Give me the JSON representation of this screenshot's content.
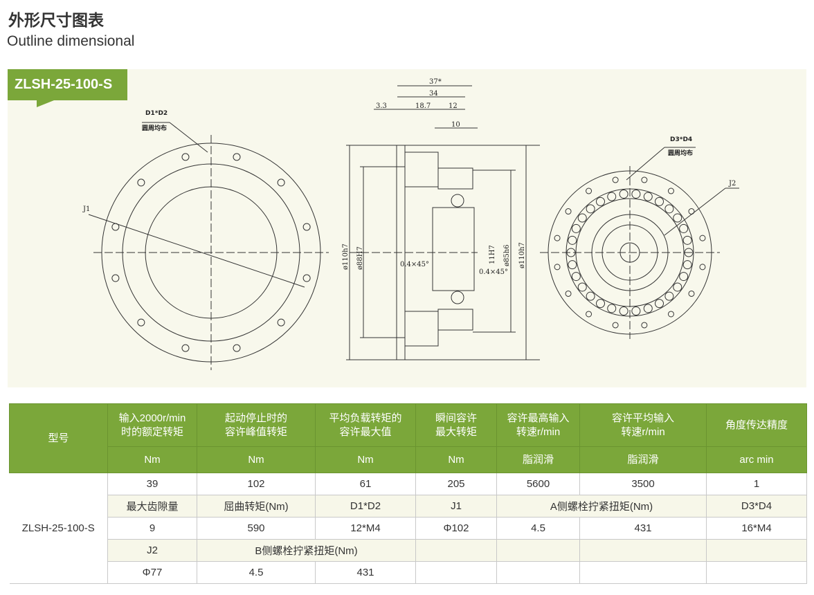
{
  "header": {
    "title": "外形尺寸图表",
    "subtitle": "Outline dimensional"
  },
  "model_tag": "ZLSH-25-100-S",
  "colors": {
    "accent": "#7ba73a",
    "panel": "#f8f8ec"
  },
  "drawing": {
    "front_left": {
      "hole_label": "D1*D2",
      "hole_note": "圆周均布",
      "diameter_label": "J1"
    },
    "section": {
      "dims": [
        "37*",
        "34",
        "3.3",
        "18.7",
        "12",
        "10"
      ],
      "left_d1": "ø110h7",
      "left_d2": "ø88H7",
      "chamfer_left": "0.4×45°",
      "chamfer_right": "0.4×45°",
      "bore": "11H7",
      "right_d1": "ø85h6",
      "right_d2": "ø110h7"
    },
    "front_right": {
      "hole_label": "D3*D4",
      "hole_note": "圆周均布",
      "diameter_label": "J2"
    }
  },
  "table": {
    "header": {
      "model": "型号",
      "cols": [
        "输入2000r/min\n时的额定转矩",
        "起动停止时的\n容许峰值转矩",
        "平均负载转矩的\n容许最大值",
        "瞬间容许\n最大转矩",
        "容许最高输入\n转速r/min",
        "容许平均输入\n转速r/min",
        "角度传达精度"
      ],
      "units": [
        "Nm",
        "Nm",
        "Nm",
        "Nm",
        "脂润滑",
        "脂润滑",
        "arc min"
      ]
    },
    "model": "ZLSH-25-100-S",
    "row1": [
      "39",
      "102",
      "61",
      "205",
      "5600",
      "3500",
      "1"
    ],
    "row2": {
      "backlash": "最大齿隙量",
      "buckling": "屈曲转矩(Nm)",
      "d1d2": "D1*D2",
      "j1": "J1",
      "a_torque": "A侧螺栓拧紧扭矩(Nm)",
      "d3d4": "D3*D4"
    },
    "row3": [
      "9",
      "590",
      "12*M4",
      "Φ102",
      "4.5",
      "431",
      "16*M4"
    ],
    "row4": {
      "j2": "J2",
      "b_torque": "B侧螺栓拧紧扭矩(Nm)"
    },
    "row5": [
      "Φ77",
      "4.5",
      "431"
    ]
  }
}
